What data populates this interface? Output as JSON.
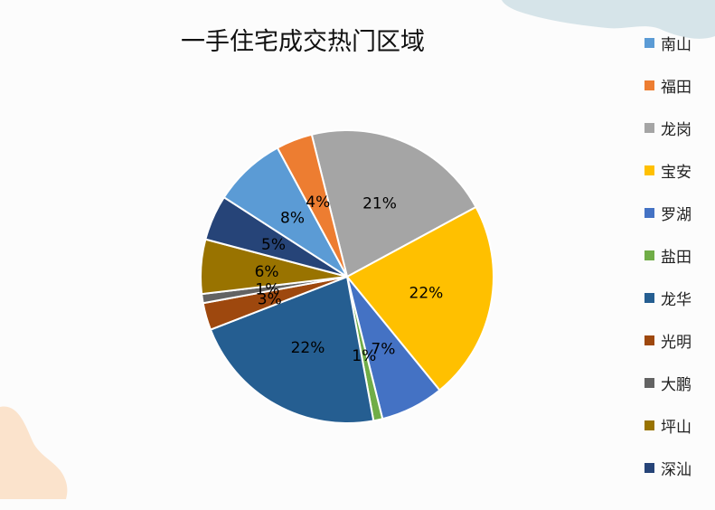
{
  "chart_data": {
    "type": "pie",
    "title": "一手住宅成交热门区域",
    "categories": [
      "南山",
      "福田",
      "龙岗",
      "宝安",
      "罗湖",
      "盐田",
      "龙华",
      "光明",
      "大鹏",
      "坪山",
      "深汕"
    ],
    "values": [
      8,
      4,
      21,
      22,
      7,
      1,
      22,
      3,
      1,
      6,
      5
    ],
    "data_labels": [
      "8%",
      "4%",
      "21%",
      "22%",
      "7%",
      "1%",
      "22%",
      "3%",
      "1%",
      "6%",
      "5%"
    ],
    "colors": [
      "#5b9bd5",
      "#ed7d31",
      "#a5a5a5",
      "#ffc000",
      "#4472c4",
      "#70ad47",
      "#255e91",
      "#9e480e",
      "#636363",
      "#997300",
      "#264478"
    ],
    "draw_order": [
      2,
      3,
      4,
      5,
      6,
      7,
      8,
      9,
      10,
      0,
      1
    ],
    "legend_position": "right"
  }
}
